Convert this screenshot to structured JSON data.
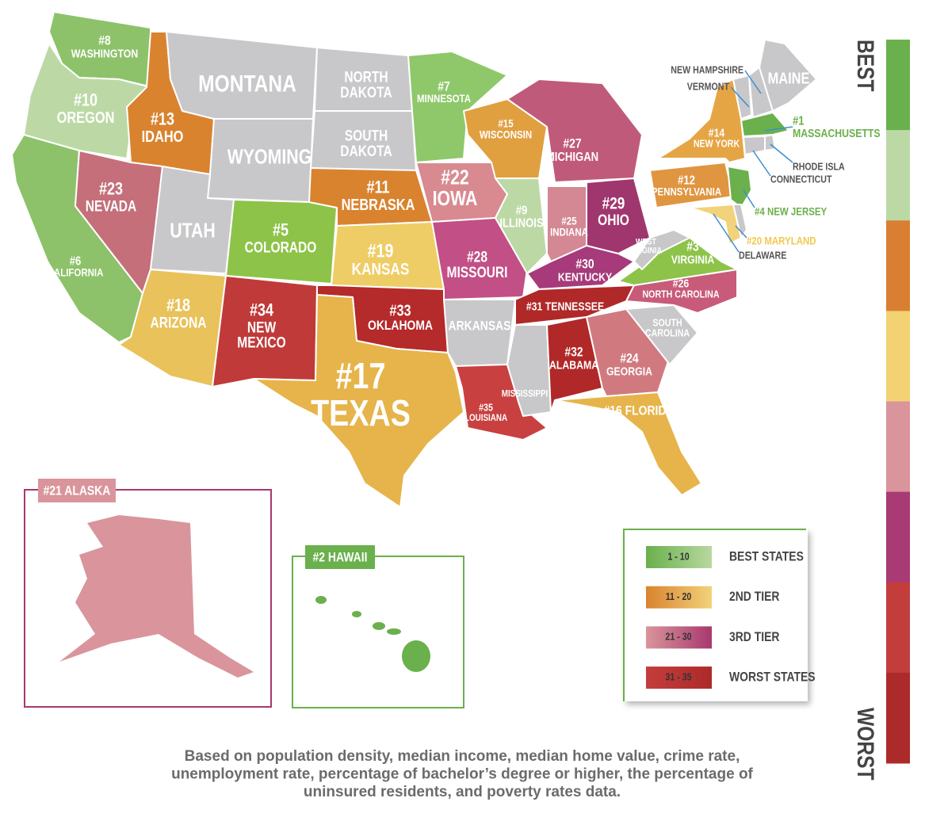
{
  "states": [
    {
      "label": [
        "#8",
        "WASHINGTON"
      ],
      "color": "#8dc26a"
    },
    {
      "label": [
        "#10",
        "OREGON"
      ],
      "color": "#bcd9a5"
    },
    {
      "label": [
        "#6",
        "CALIFORNIA"
      ],
      "color": "#8dc26a"
    },
    {
      "label": [
        "#13",
        "IDAHO"
      ],
      "color": "#d9832f"
    },
    {
      "label": [
        "#23",
        "NEVADA"
      ],
      "color": "#c46f7a"
    },
    {
      "label": [
        "MONTANA"
      ],
      "color": "#c8c8ca"
    },
    {
      "label": [
        "WYOMING"
      ],
      "color": "#c8c8ca"
    },
    {
      "label": [
        "UTAH"
      ],
      "color": "#c8c8ca"
    },
    {
      "label": [
        "#18",
        "ARIZONA"
      ],
      "color": "#e9c25b"
    },
    {
      "label": [
        "#5",
        "COLORADO"
      ],
      "color": "#8dc348"
    },
    {
      "label": [
        "#34",
        "NEW",
        "MEXICO"
      ],
      "color": "#c03a3a"
    },
    {
      "label": [
        "NORTH",
        "DAKOTA"
      ],
      "color": "#c8c8ca"
    },
    {
      "label": [
        "SOUTH",
        "DAKOTA"
      ],
      "color": "#c8c8ca"
    },
    {
      "label": [
        "#11",
        "NEBRASKA"
      ],
      "color": "#d9832f"
    },
    {
      "label": [
        "#19",
        "KANSAS"
      ],
      "color": "#efcd66"
    },
    {
      "label": [
        "#33",
        "OKLAHOMA"
      ],
      "color": "#b52a2a"
    },
    {
      "label": [
        "#17",
        "TEXAS"
      ],
      "color": "#e6b44a"
    },
    {
      "label": [
        "#7",
        "MINNESOTA"
      ],
      "color": "#8fc86a"
    },
    {
      "label": [
        "#22",
        "IOWA"
      ],
      "color": "#d88a90"
    },
    {
      "label": [
        "#28",
        "MISSOURI"
      ],
      "color": "#c24f86"
    },
    {
      "label": [
        "ARKANSAS"
      ],
      "color": "#c8c8ca"
    },
    {
      "label": [
        "#35",
        "LOUISIANA"
      ],
      "color": "#c94040"
    },
    {
      "label": [
        "#15",
        "WISCONSIN"
      ],
      "color": "#e0a040"
    },
    {
      "label": [
        "#9",
        "ILLINOIS"
      ],
      "color": "#bcd9a5"
    },
    {
      "label": [
        "#27",
        "MICHIGAN"
      ],
      "color": "#c05a7a"
    },
    {
      "label": [
        "#25",
        "INDIANA"
      ],
      "color": "#d38893"
    },
    {
      "label": [
        "#29",
        "OHIO"
      ],
      "color": "#a0366e"
    },
    {
      "label": [
        "#30",
        "KENTUCKY"
      ],
      "color": "#a63a7a"
    },
    {
      "label": [
        "#31 TENNESSEE"
      ],
      "color": "#b02828"
    },
    {
      "label": [
        "MISSISSIPPI"
      ],
      "color": "#c8c8ca"
    },
    {
      "label": [
        "#32",
        "ALABAMA"
      ],
      "color": "#b02828"
    },
    {
      "label": [
        "#24",
        "GEORGIA"
      ],
      "color": "#d07a80"
    },
    {
      "label": [
        "#16 FLORIDA"
      ],
      "color": "#e6b44a"
    },
    {
      "label": [
        "SOUTH",
        "CAROLINA"
      ],
      "color": "#c8c8ca"
    },
    {
      "label": [
        "#26",
        "NORTH CAROLINA"
      ],
      "color": "#c85a7a"
    },
    {
      "label": [
        "#3",
        "VIRGINIA"
      ],
      "color": "#8dc348"
    },
    {
      "label": [
        "WEST",
        "VIRGINIA"
      ],
      "color": "#c8c8ca"
    },
    {
      "label": [
        "#12",
        "PENNSYLVANIA"
      ],
      "color": "#e09540"
    },
    {
      "label": [
        "#14",
        "NEW YORK"
      ],
      "color": "#e6a544"
    },
    {
      "label": [
        "#4 NEW JERSEY"
      ],
      "color": "#6ab04c",
      "text_color": "#6ab04c"
    },
    {
      "label": [
        "#20 MARYLAND"
      ],
      "color": "#f2d27a",
      "text_color": "#f2c94c"
    },
    {
      "label": [
        "DELAWARE"
      ],
      "color": "#c8c8ca",
      "text_color": "#555555"
    },
    {
      "label": [
        "#1",
        "MASSACHUSETTS"
      ],
      "color": "#6ab04c",
      "text_color": "#6ab04c"
    },
    {
      "label": [
        "CONNECTICUT"
      ],
      "color": "#c8c8ca",
      "text_color": "#555555"
    },
    {
      "label": [
        "RHODE ISLA"
      ],
      "color": "#c8c8ca",
      "text_color": "#555555"
    },
    {
      "label": [
        "VERMONT"
      ],
      "color": "#c8c8ca",
      "text_color": "#555555"
    },
    {
      "label": [
        "NEW HAMPSHIRE"
      ],
      "color": "#c8c8ca",
      "text_color": "#555555"
    },
    {
      "label": [
        "MAINE"
      ],
      "color": "#c8c8ca"
    }
  ],
  "alaska": {
    "title": "#21 ALASKA",
    "color": "#d9959b",
    "frame_color": "#a8386f"
  },
  "hawaii": {
    "title": "#2 HAWAII",
    "color": "#6ab04c",
    "frame_color": "#6ab04c"
  },
  "legend": [
    {
      "range": "1 - 10",
      "label": "BEST STATES",
      "colors": [
        "#6ab04c",
        "#b8d8a0"
      ]
    },
    {
      "range": "11 - 20",
      "label": "2ND TIER",
      "colors": [
        "#d9832f",
        "#f2d27a"
      ]
    },
    {
      "range": "21 - 30",
      "label": "3RD TIER",
      "colors": [
        "#d9959b",
        "#a8386f"
      ]
    },
    {
      "range": "31 - 35",
      "label": "WORST STATES",
      "colors": [
        "#c43d3d",
        "#ad2a2a"
      ]
    }
  ],
  "scale": {
    "top": "BEST",
    "bottom": "WORST",
    "colors": [
      "#6ab04c",
      "#bcd9a5",
      "#d97f31",
      "#f2d273",
      "#d9959b",
      "#a83a74",
      "#c43d3d",
      "#ad2a2a"
    ]
  },
  "footnote": [
    "Based on population density, median income, median home value, crime rate,",
    "unemployment rate, percentage of bachelor’s degree or higher, the percentage of",
    "uninsured residents, and poverty rates data."
  ]
}
